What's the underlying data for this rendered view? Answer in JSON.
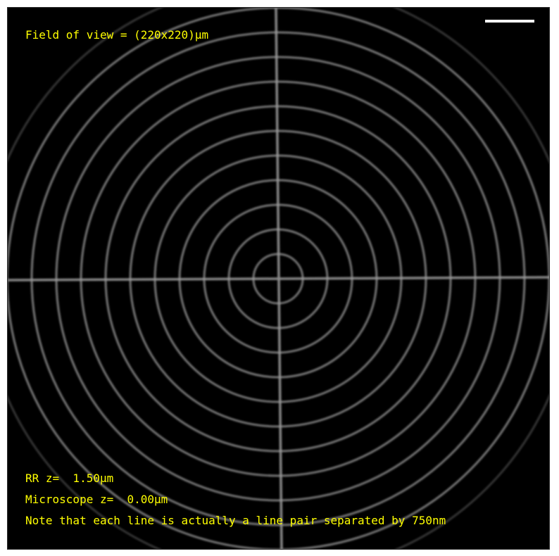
{
  "overlay": {
    "field_of_view": "Field of view = (220x220)μm",
    "rr_z": "RR z=  1.50μm",
    "microscope_z": "Microscope z=  0.00μm",
    "note": "Note that each line is actually a line pair separated by 750nm"
  },
  "colors": {
    "background": "#000000",
    "text": "#ffff00",
    "scale_bar": "#ffffff",
    "target_lines": "#8c8c8c"
  },
  "target": {
    "ring_count": 12
  }
}
